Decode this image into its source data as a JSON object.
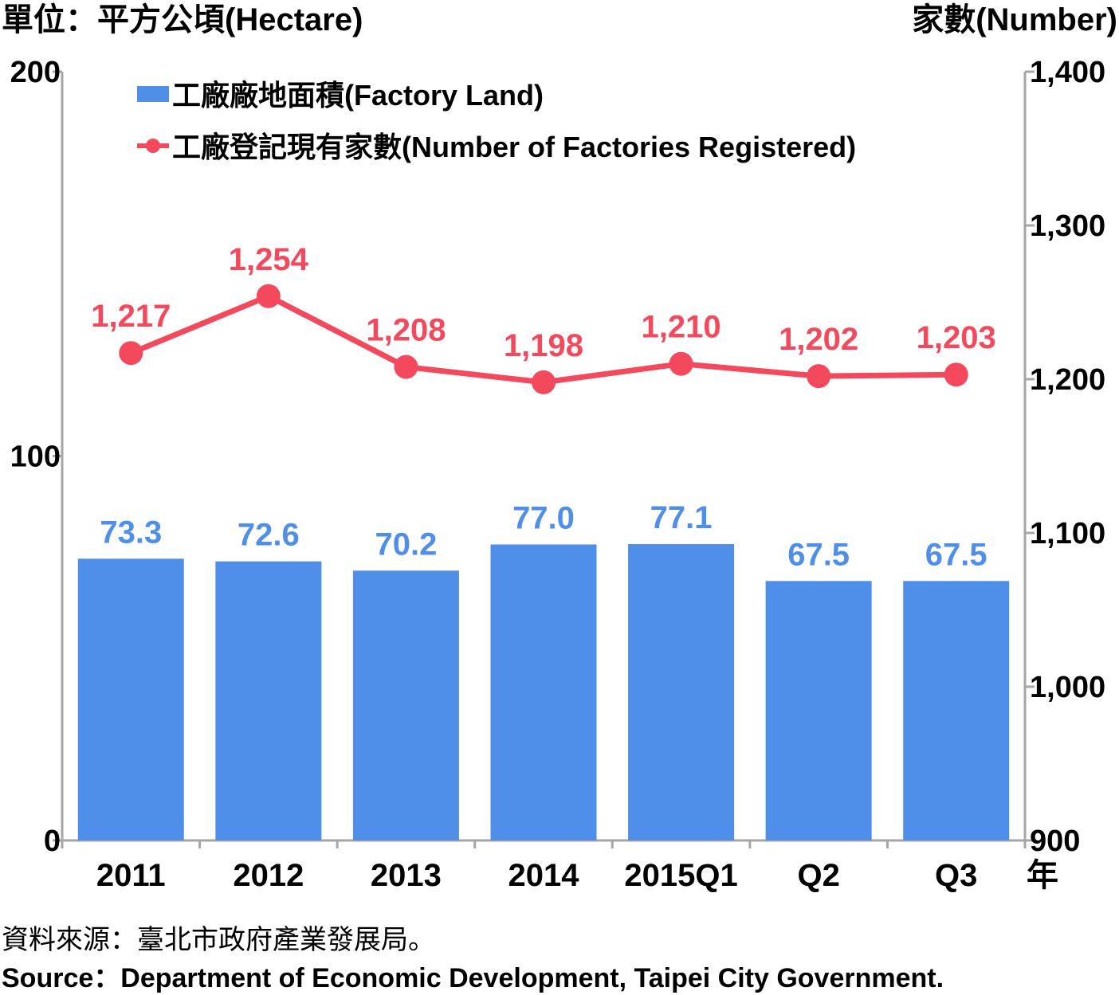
{
  "chart_data": {
    "type": "bar+line",
    "categories": [
      "2011",
      "2012",
      "2013",
      "2014",
      "2015Q1",
      "Q2",
      "Q3"
    ],
    "x_suffix": "年",
    "left_axis": {
      "label": "單位：平方公頃(Hectare)",
      "ylim": [
        0,
        200
      ],
      "ticks": [
        "0",
        "100",
        "200"
      ]
    },
    "right_axis": {
      "label": "家數(Number)",
      "ylim": [
        900,
        1400
      ],
      "ticks": [
        "900",
        "1,000",
        "1,100",
        "1,200",
        "1,300",
        "1,400"
      ]
    },
    "series": [
      {
        "name": "工廠廠地面積(Factory Land)",
        "type": "bar",
        "axis": "left",
        "color": "#4f8fea",
        "values": [
          73.3,
          72.6,
          70.2,
          77.0,
          77.1,
          67.5,
          67.5
        ],
        "labels": [
          "73.3",
          "72.6",
          "70.2",
          "77.0",
          "77.1",
          "67.5",
          "67.5"
        ]
      },
      {
        "name": "工廠登記現有家數(Number of Factories Registered)",
        "type": "line",
        "axis": "right",
        "color": "#f4485c",
        "values": [
          1217,
          1254,
          1208,
          1198,
          1210,
          1202,
          1203
        ],
        "labels": [
          "1,217",
          "1,254",
          "1,208",
          "1,198",
          "1,210",
          "1,202",
          "1,203"
        ]
      }
    ],
    "legend_position": "top-left"
  },
  "footer": {
    "note": "資料來源：臺北市政府產業發展局。",
    "source": "Source：Department of Economic Development, Taipei City Government."
  }
}
